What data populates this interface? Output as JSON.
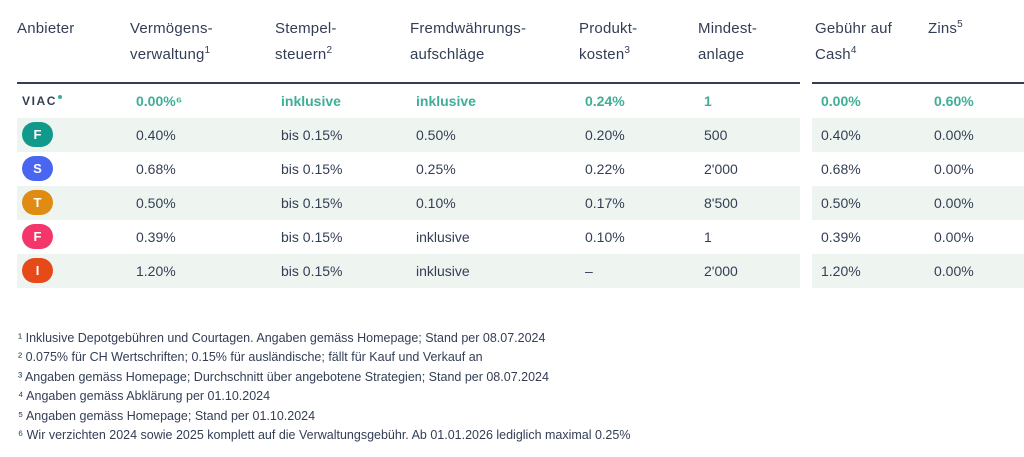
{
  "chart_data": {
    "type": "table",
    "columns": [
      "Anbieter",
      "Vermögensverwaltung¹",
      "Stempelsteuern²",
      "Fremdwährungsaufschläge",
      "Produktkosten³",
      "Mindestanlage",
      "Gebühr auf Cash⁴",
      "Zins⁵"
    ],
    "rows": [
      [
        "VIAC",
        "0.00%⁶",
        "inklusive",
        "inklusive",
        "0.24%",
        "1",
        "0.00%",
        "0.60%"
      ],
      [
        "F",
        "0.40%",
        "bis 0.15%",
        "0.50%",
        "0.20%",
        "500",
        "0.40%",
        "0.00%"
      ],
      [
        "S",
        "0.68%",
        "bis 0.15%",
        "0.25%",
        "0.22%",
        "2'000",
        "0.68%",
        "0.00%"
      ],
      [
        "T",
        "0.50%",
        "bis 0.15%",
        "0.10%",
        "0.17%",
        "8'500",
        "0.50%",
        "0.00%"
      ],
      [
        "F",
        "0.39%",
        "bis 0.15%",
        "inklusive",
        "0.10%",
        "1",
        "0.39%",
        "0.00%"
      ],
      [
        "I",
        "1.20%",
        "bis 0.15%",
        "inklusive",
        "–",
        "2'000",
        "1.20%",
        "0.00%"
      ]
    ]
  },
  "header": [
    {
      "l1": "Anbieter",
      "s1": "",
      "l2": "",
      "s2": ""
    },
    {
      "l1": "Vermögens-",
      "s1": "",
      "l2": "verwaltung",
      "s2": "1"
    },
    {
      "l1": "Stempel-",
      "s1": "",
      "l2": "steuern",
      "s2": "2"
    },
    {
      "l1": "Fremdwährungs-",
      "s1": "",
      "l2": "aufschläge",
      "s2": ""
    },
    {
      "l1": "Produkt-",
      "s1": "",
      "l2": "kosten",
      "s2": "3"
    },
    {
      "l1": "Mindest-",
      "s1": "",
      "l2": "anlage",
      "s2": ""
    },
    {
      "l1": "Gebühr auf",
      "s1": "",
      "l2": "Cash",
      "s2": "4"
    },
    {
      "l1": "Zins",
      "s1": "5",
      "l2": "",
      "s2": ""
    }
  ],
  "footnotes": [
    "¹ Inklusive Depotgebühren und Courtagen. Angaben gemäss Homepage; Stand per 08.07.2024",
    "² 0.075% für CH Wertschriften; 0.15% für ausländische; fällt für Kauf und Verkauf an",
    "³ Angaben gemäss Homepage; Durchschnitt über angebotene Strategien; Stand per 08.07.2024",
    "⁴ Angaben gemäss Abklärung per 01.10.2024",
    "⁵ Angaben gemäss Homepage; Stand per 01.10.2024",
    "⁶ Wir verzichten 2024 sowie 2025 komplett auf die Verwaltungsgebühr. Ab 01.01.2026 lediglich maximal 0.25%"
  ],
  "colors": {
    "text_navy": "#333e55",
    "accent_green": "#3fae96",
    "row_stripe": "#eef5f0",
    "badges": [
      "",
      "#11998c",
      "#4a66f0",
      "#e08b12",
      "#f4366a",
      "#e64a19"
    ]
  }
}
